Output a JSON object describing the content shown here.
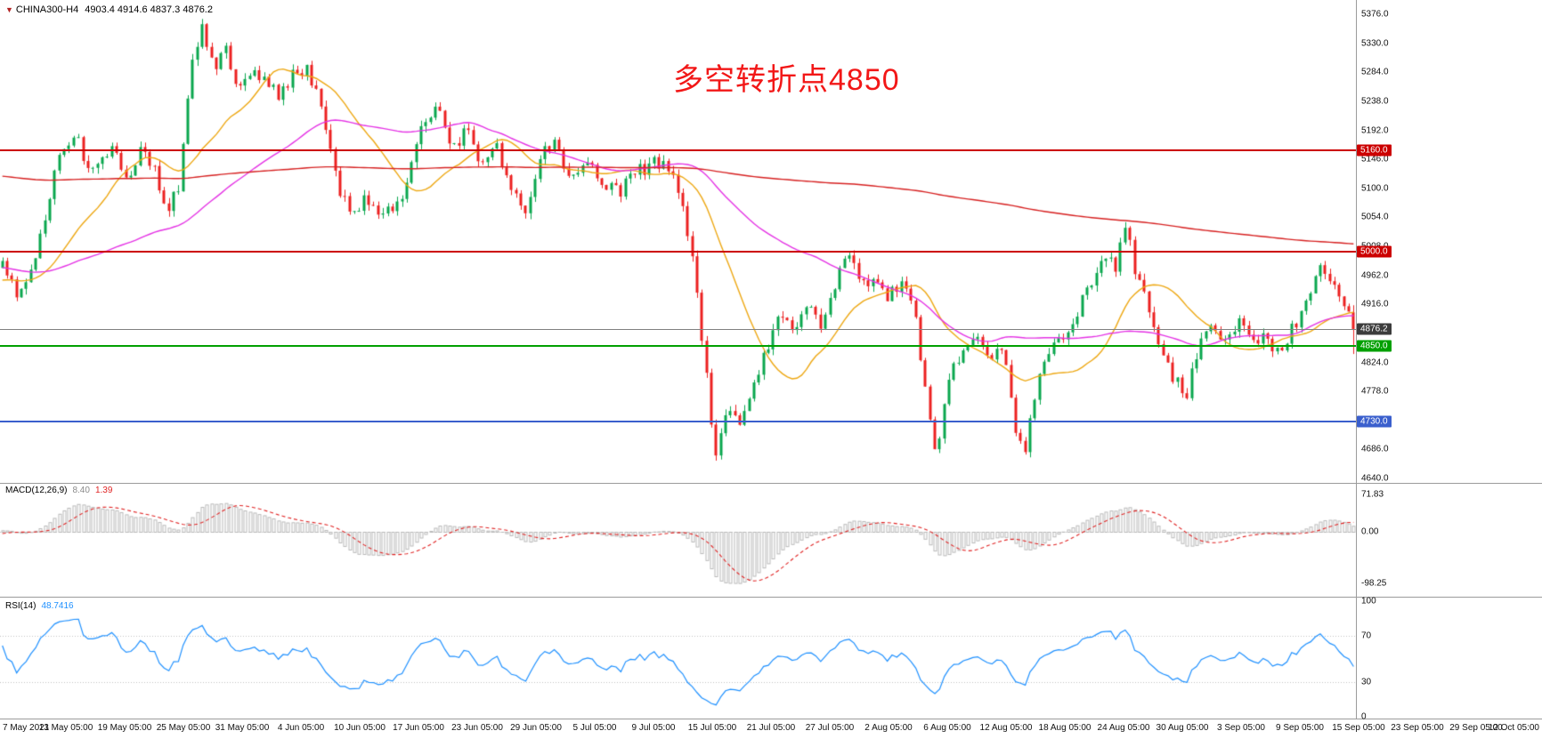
{
  "window": {
    "marker_icon": "▼",
    "title_symbol": "CHINA300-H4",
    "title_ohlc": "4903.4 4914.6 4837.3 4876.2"
  },
  "annotation": {
    "text": "多空转折点4850",
    "color": "#f21717"
  },
  "colors": {
    "background": "#ffffff",
    "candle_up": "#0aa74e",
    "candle_down": "#ec2121",
    "ma_fast_orange": "#eda712",
    "ma_mid_magenta": "#e432e4",
    "ma_slow_red": "#d62020",
    "macd_histogram": "#b9b9b9",
    "macd_value_text": "#8a8a8a",
    "macd_signal": "#e02424",
    "rsi_line": "#1e90ff",
    "level_red": "#cc0000",
    "level_green": "#00a000",
    "level_blue": "#3a5fcd",
    "current_price_line": "#808080",
    "current_price_badge": "#3c3c3c",
    "axis_text": "#111111"
  },
  "chart_data": {
    "type": "candlestick",
    "symbol": "CHINA300",
    "timeframe": "H4",
    "last_ohlc": {
      "open": 4903.4,
      "high": 4914.6,
      "low": 4837.3,
      "close": 4876.2
    },
    "y_range": [
      4640,
      5376
    ],
    "y_ticks": [
      "5376.0",
      "5330.0",
      "5284.0",
      "5238.0",
      "5192.0",
      "5146.0",
      "5100.0",
      "5054.0",
      "5008.0",
      "4962.0",
      "4916.0",
      "4824.0",
      "4778.0",
      "4686.0",
      "4640.0"
    ],
    "levels": [
      {
        "value": 5160.0,
        "label": "5160.0",
        "color": "#cc0000",
        "type": "resistance"
      },
      {
        "value": 5000.0,
        "label": "5000.0",
        "color": "#cc0000",
        "type": "resistance"
      },
      {
        "value": 4876.2,
        "label": "4876.2",
        "color": "#808080",
        "badge": "#3c3c3c",
        "type": "current-price"
      },
      {
        "value": 4850.0,
        "label": "4850.0",
        "color": "#00a000",
        "type": "support"
      },
      {
        "value": 4730.0,
        "label": "4730.0",
        "color": "#3a5fcd",
        "type": "support"
      }
    ],
    "x_ticks": [
      "7 May 2021",
      "13 May 05:00",
      "19 May 05:00",
      "25 May 05:00",
      "31 May 05:00",
      "4 Jun 05:00",
      "10 Jun 05:00",
      "17 Jun 05:00",
      "23 Jun 05:00",
      "29 Jun 05:00",
      "5 Jul 05:00",
      "9 Jul 05:00",
      "15 Jul 05:00",
      "21 Jul 05:00",
      "27 Jul 05:00",
      "2 Aug 05:00",
      "6 Aug 05:00",
      "12 Aug 05:00",
      "18 Aug 05:00",
      "24 Aug 05:00",
      "30 Aug 05:00",
      "3 Sep 05:00",
      "9 Sep 05:00",
      "15 Sep 05:00",
      "23 Sep 05:00",
      "29 Sep 05:00",
      "12 Oct 05:00"
    ],
    "visible_candles": 285,
    "moving_averages": [
      {
        "name": "MA-fast",
        "period": 20,
        "color": "#eda712"
      },
      {
        "name": "MA-mid",
        "period": 60,
        "color": "#e432e4"
      },
      {
        "name": "MA-slow",
        "period": 380,
        "color": "#d62020"
      }
    ],
    "price_path": [
      [
        -0.7,
        5240
      ],
      [
        -0.55,
        5270
      ],
      [
        -0.4,
        5160
      ],
      [
        -0.25,
        5060
      ],
      [
        -0.12,
        4965
      ],
      [
        -0.04,
        4940
      ],
      [
        0.0,
        4975
      ],
      [
        0.012,
        4930
      ],
      [
        0.025,
        5000
      ],
      [
        0.042,
        5150
      ],
      [
        0.055,
        5185
      ],
      [
        0.065,
        5120
      ],
      [
        0.08,
        5160
      ],
      [
        0.092,
        5118
      ],
      [
        0.102,
        5155
      ],
      [
        0.112,
        5140
      ],
      [
        0.122,
        5062
      ],
      [
        0.13,
        5100
      ],
      [
        0.14,
        5300
      ],
      [
        0.148,
        5350
      ],
      [
        0.158,
        5290
      ],
      [
        0.166,
        5320
      ],
      [
        0.175,
        5252
      ],
      [
        0.186,
        5282
      ],
      [
        0.196,
        5268
      ],
      [
        0.206,
        5248
      ],
      [
        0.216,
        5288
      ],
      [
        0.226,
        5292
      ],
      [
        0.236,
        5228
      ],
      [
        0.248,
        5108
      ],
      [
        0.258,
        5058
      ],
      [
        0.27,
        5082
      ],
      [
        0.282,
        5060
      ],
      [
        0.295,
        5075
      ],
      [
        0.31,
        5188
      ],
      [
        0.322,
        5230
      ],
      [
        0.333,
        5155
      ],
      [
        0.344,
        5198
      ],
      [
        0.355,
        5130
      ],
      [
        0.366,
        5172
      ],
      [
        0.377,
        5092
      ],
      [
        0.388,
        5060
      ],
      [
        0.4,
        5158
      ],
      [
        0.41,
        5180
      ],
      [
        0.42,
        5105
      ],
      [
        0.432,
        5148
      ],
      [
        0.445,
        5112
      ],
      [
        0.458,
        5098
      ],
      [
        0.472,
        5128
      ],
      [
        0.487,
        5142
      ],
      [
        0.5,
        5098
      ],
      [
        0.51,
        5008
      ],
      [
        0.52,
        4818
      ],
      [
        0.528,
        4678
      ],
      [
        0.537,
        4752
      ],
      [
        0.546,
        4722
      ],
      [
        0.556,
        4778
      ],
      [
        0.566,
        4848
      ],
      [
        0.576,
        4905
      ],
      [
        0.586,
        4878
      ],
      [
        0.596,
        4922
      ],
      [
        0.606,
        4868
      ],
      [
        0.616,
        4948
      ],
      [
        0.626,
        4992
      ],
      [
        0.636,
        4948
      ],
      [
        0.646,
        4962
      ],
      [
        0.656,
        4928
      ],
      [
        0.666,
        4948
      ],
      [
        0.676,
        4892
      ],
      [
        0.684,
        4772
      ],
      [
        0.691,
        4678
      ],
      [
        0.701,
        4798
      ],
      [
        0.711,
        4848
      ],
      [
        0.721,
        4870
      ],
      [
        0.731,
        4818
      ],
      [
        0.741,
        4852
      ],
      [
        0.751,
        4708
      ],
      [
        0.757,
        4678
      ],
      [
        0.766,
        4802
      ],
      [
        0.776,
        4852
      ],
      [
        0.786,
        4868
      ],
      [
        0.796,
        4908
      ],
      [
        0.806,
        4948
      ],
      [
        0.816,
        4996
      ],
      [
        0.824,
        4972
      ],
      [
        0.831,
        5040
      ],
      [
        0.841,
        4948
      ],
      [
        0.851,
        4898
      ],
      [
        0.859,
        4828
      ],
      [
        0.867,
        4796
      ],
      [
        0.876,
        4772
      ],
      [
        0.886,
        4848
      ],
      [
        0.896,
        4878
      ],
      [
        0.906,
        4860
      ],
      [
        0.916,
        4898
      ],
      [
        0.926,
        4866
      ],
      [
        0.936,
        4858
      ],
      [
        0.946,
        4836
      ],
      [
        0.956,
        4882
      ],
      [
        0.966,
        4928
      ],
      [
        0.976,
        4972
      ],
      [
        0.986,
        4938
      ],
      [
        1.0,
        4878
      ]
    ],
    "indicators": {
      "macd": {
        "label": "MACD(12,26,9)",
        "value_main": "8.40",
        "value_signal": "1.39",
        "params": [
          12,
          26,
          9
        ],
        "ticks": [
          "71.83",
          "0.00",
          "-98.25"
        ]
      },
      "rsi": {
        "label": "RSI(14)",
        "value": "48.7416",
        "period": 14,
        "ticks": [
          "100",
          "70",
          "30",
          "0"
        ],
        "levels": [
          70,
          30
        ]
      }
    }
  }
}
